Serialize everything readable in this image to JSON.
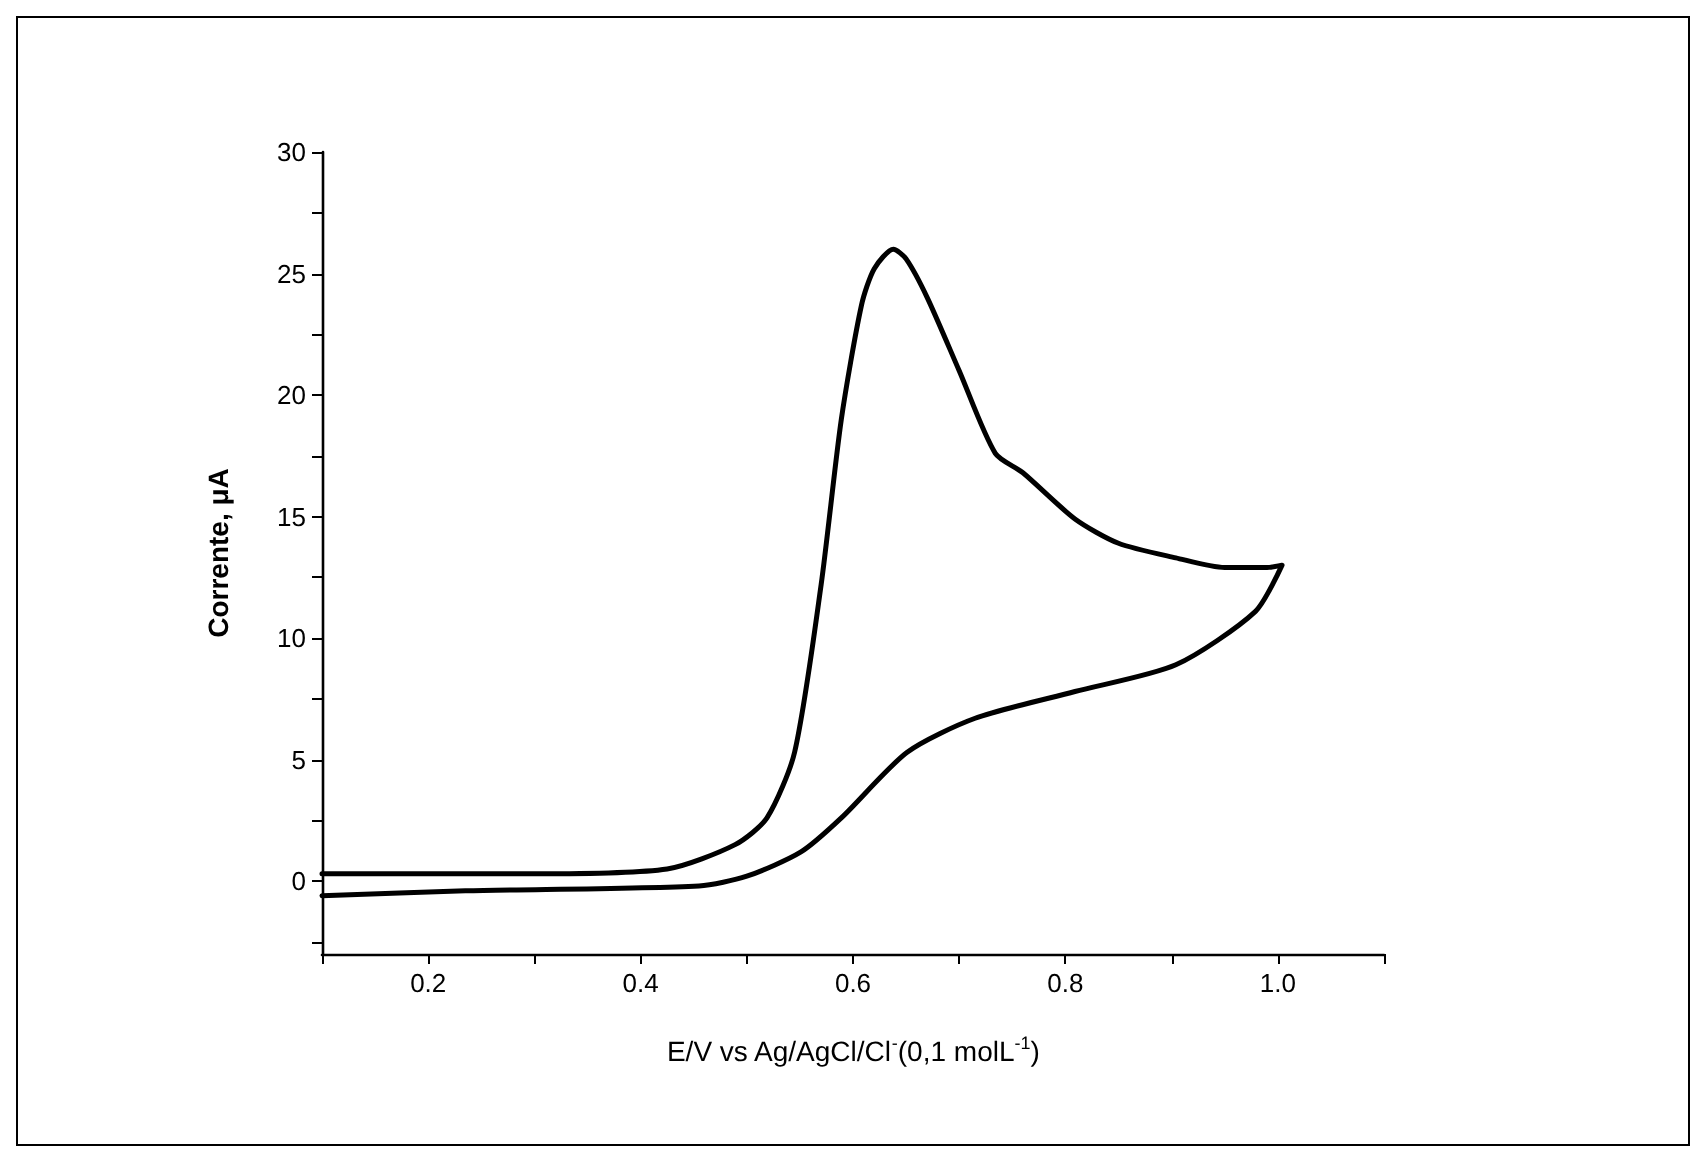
{
  "chart_data": {
    "type": "line",
    "xlabel": "E/V vs Ag/AgCl/Cl$^{-}$(0,1 molL$^{-1}$)",
    "ylabel": "Corrente, μA",
    "xlim": [
      0.1,
      1.1
    ],
    "xticks": [
      {
        "value": 0.1,
        "label": null
      },
      0.2,
      {
        "value": 0.3,
        "label": null
      },
      0.4,
      {
        "value": 0.5,
        "label": null
      },
      0.6,
      {
        "value": 0.7,
        "label": null
      },
      0.8,
      {
        "value": 0.9,
        "label": null
      },
      {
        "value": 1,
        "label": "1.0"
      },
      {
        "value": 1.1,
        "label": null
      }
    ],
    "ylim": [
      -3,
      30
    ],
    "yticks": [
      {
        "value": -2.5,
        "label": null
      },
      0,
      {
        "value": 2.5,
        "label": null
      },
      5,
      {
        "value": 7.5,
        "label": null
      },
      10,
      {
        "value": 12.5,
        "label": null
      },
      15,
      {
        "value": 17.5,
        "label": null
      },
      20,
      {
        "value": 22.5,
        "label": null
      },
      25,
      {
        "value": 27.5,
        "label": null
      },
      30
    ],
    "grid": false,
    "marker": "none",
    "line_style": "solid",
    "series": [
      {
        "color": "#000000",
        "x": [
          0.1,
          0.235,
          0.455,
          0.5,
          0.551,
          0.589,
          0.651,
          0.715,
          0.809,
          0.904,
          0.979,
          1.004,
          0.99,
          0.95,
          0.904,
          0.85,
          0.809,
          0.76,
          0.734,
          0.7,
          0.67,
          0.65,
          0.638,
          0.62,
          0.608,
          0.589,
          0.57,
          0.545,
          0.519,
          0.489,
          0.425,
          0.3,
          0.1
        ],
        "values": [
          -0.6,
          -0.4,
          -0.2,
          0.2,
          1.2,
          2.6,
          5.3,
          6.7,
          7.8,
          8.9,
          11.1,
          13,
          12.9,
          12.9,
          13.3,
          13.9,
          14.9,
          16.8,
          17.6,
          21,
          24,
          25.6,
          26.0,
          25.2,
          23.7,
          19,
          12.2,
          5.3,
          2.6,
          1.5,
          0.5,
          0.3,
          0.3
        ]
      }
    ]
  }
}
